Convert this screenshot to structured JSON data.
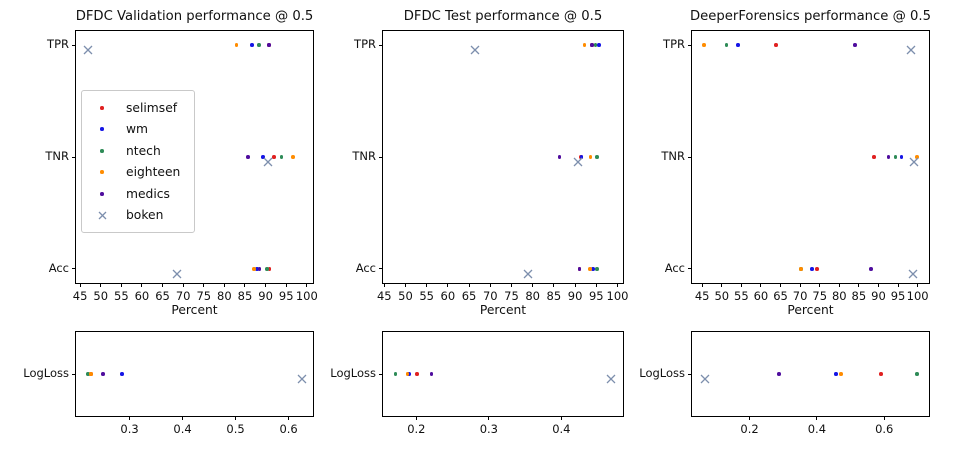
{
  "chart_data": [
    {
      "type": "scatter",
      "title": "DFDC Validation performance @ 0.5",
      "xlabel": "Percent",
      "categories": [
        "TPR",
        "TNR",
        "Acc"
      ],
      "xlim": [
        44.0,
        101.5
      ],
      "xticks": [
        45,
        50,
        55,
        60,
        65,
        70,
        75,
        80,
        85,
        90,
        95,
        100
      ],
      "grid": false,
      "legend": {
        "show": true,
        "left": 5,
        "top": 59
      },
      "series": [
        {
          "name": "selimsef",
          "marker": "dot",
          "color": "#e02020",
          "values": [
            90.8,
            92.0,
            90.9
          ]
        },
        {
          "name": "wm",
          "marker": "dot",
          "color": "#1515e6",
          "values": [
            86.7,
            89.3,
            87.9
          ]
        },
        {
          "name": "ntech",
          "marker": "dot",
          "color": "#2e8b57",
          "values": [
            88.4,
            93.9,
            90.3
          ]
        },
        {
          "name": "eighteen",
          "marker": "dot",
          "color": "#ff8c00",
          "values": [
            82.9,
            96.6,
            87.2
          ]
        },
        {
          "name": "medics",
          "marker": "dot",
          "color": "#4f0d9e",
          "values": [
            90.8,
            85.8,
            88.5
          ]
        },
        {
          "name": "boken",
          "marker": "x",
          "color": "#7d8fad",
          "values": [
            47.0,
            90.5,
            68.4
          ]
        }
      ]
    },
    {
      "type": "scatter",
      "title": "DFDC Test performance @ 0.5",
      "xlabel": "Percent",
      "categories": [
        "TPR",
        "TNR",
        "Acc"
      ],
      "xlim": [
        44.7,
        101.3
      ],
      "xticks": [
        45,
        50,
        55,
        60,
        65,
        70,
        75,
        80,
        85,
        90,
        95,
        100
      ],
      "grid": false,
      "legend": {
        "show": false
      },
      "series": [
        {
          "name": "selimsef",
          "marker": "dot",
          "color": "#e02020",
          "values": [
            94.0,
            91.4,
            91.0
          ]
        },
        {
          "name": "wm",
          "marker": "dot",
          "color": "#1515e6",
          "values": [
            95.7,
            91.5,
            94.2
          ]
        },
        {
          "name": "ntech",
          "marker": "dot",
          "color": "#2e8b57",
          "values": [
            94.8,
            95.2,
            95.1
          ]
        },
        {
          "name": "eighteen",
          "marker": "dot",
          "color": "#ff8c00",
          "values": [
            92.2,
            93.6,
            93.5
          ]
        },
        {
          "name": "medics",
          "marker": "dot",
          "color": "#4f0d9e",
          "values": [
            94.0,
            86.3,
            91.0
          ]
        },
        {
          "name": "boken",
          "marker": "x",
          "color": "#7d8fad",
          "values": [
            66.5,
            90.8,
            78.8
          ]
        }
      ]
    },
    {
      "type": "scatter",
      "title": "DeeperForensics performance @ 0.5",
      "xlabel": "Percent",
      "categories": [
        "TPR",
        "TNR",
        "Acc"
      ],
      "xlim": [
        42.4,
        102.9
      ],
      "xticks": [
        45,
        50,
        55,
        60,
        65,
        70,
        75,
        80,
        85,
        90,
        95,
        100
      ],
      "grid": false,
      "legend": {
        "show": false
      },
      "series": [
        {
          "name": "selimsef",
          "marker": "dot",
          "color": "#e02020",
          "values": [
            63.9,
            88.8,
            74.3
          ]
        },
        {
          "name": "wm",
          "marker": "dot",
          "color": "#1515e6",
          "values": [
            54.2,
            95.9,
            73.0
          ]
        },
        {
          "name": "ntech",
          "marker": "dot",
          "color": "#2e8b57",
          "values": [
            51.2,
            94.4,
            70.3
          ]
        },
        {
          "name": "eighteen",
          "marker": "dot",
          "color": "#ff8c00",
          "values": [
            45.5,
            99.8,
            70.3
          ]
        },
        {
          "name": "medics",
          "marker": "dot",
          "color": "#4f0d9e",
          "values": [
            84.0,
            92.6,
            88.1
          ]
        },
        {
          "name": "boken",
          "marker": "x",
          "color": "#7d8fad",
          "values": [
            98.2,
            99.0,
            98.7
          ]
        }
      ]
    },
    {
      "type": "scatter",
      "title": "",
      "xlabel": "",
      "categories": [
        "LogLoss"
      ],
      "xlim": [
        0.199,
        0.646
      ],
      "xticks": [
        0.3,
        0.4,
        0.5,
        0.6
      ],
      "grid": false,
      "legend": {
        "show": false
      },
      "series": [
        {
          "name": "selimsef",
          "marker": "dot",
          "color": "#e02020",
          "values": [
            0.227
          ]
        },
        {
          "name": "wm",
          "marker": "dot",
          "color": "#1515e6",
          "values": [
            0.286
          ]
        },
        {
          "name": "ntech",
          "marker": "dot",
          "color": "#2e8b57",
          "values": [
            0.222
          ]
        },
        {
          "name": "eighteen",
          "marker": "dot",
          "color": "#ff8c00",
          "values": [
            0.227
          ]
        },
        {
          "name": "medics",
          "marker": "dot",
          "color": "#4f0d9e",
          "values": [
            0.25
          ]
        },
        {
          "name": "boken",
          "marker": "x",
          "color": "#7d8fad",
          "values": [
            0.626
          ]
        }
      ]
    },
    {
      "type": "scatter",
      "title": "",
      "xlabel": "",
      "categories": [
        "LogLoss"
      ],
      "xlim": [
        0.154,
        0.485
      ],
      "xticks": [
        0.2,
        0.3,
        0.4
      ],
      "grid": false,
      "legend": {
        "show": false
      },
      "series": [
        {
          "name": "selimsef",
          "marker": "dot",
          "color": "#e02020",
          "values": [
            0.201
          ]
        },
        {
          "name": "wm",
          "marker": "dot",
          "color": "#1515e6",
          "values": [
            0.19
          ]
        },
        {
          "name": "ntech",
          "marker": "dot",
          "color": "#2e8b57",
          "values": [
            0.171
          ]
        },
        {
          "name": "eighteen",
          "marker": "dot",
          "color": "#ff8c00",
          "values": [
            0.188
          ]
        },
        {
          "name": "medics",
          "marker": "dot",
          "color": "#4f0d9e",
          "values": [
            0.221
          ]
        },
        {
          "name": "boken",
          "marker": "x",
          "color": "#7d8fad",
          "values": [
            0.468
          ]
        }
      ]
    },
    {
      "type": "scatter",
      "title": "",
      "xlabel": "",
      "categories": [
        "LogLoss"
      ],
      "xlim": [
        0.029,
        0.733
      ],
      "xticks": [
        0.2,
        0.4,
        0.6
      ],
      "grid": false,
      "legend": {
        "show": false
      },
      "series": [
        {
          "name": "selimsef",
          "marker": "dot",
          "color": "#e02020",
          "values": [
            0.59
          ]
        },
        {
          "name": "wm",
          "marker": "dot",
          "color": "#1515e6",
          "values": [
            0.456
          ]
        },
        {
          "name": "ntech",
          "marker": "dot",
          "color": "#2e8b57",
          "values": [
            0.698
          ]
        },
        {
          "name": "eighteen",
          "marker": "dot",
          "color": "#ff8c00",
          "values": [
            0.471
          ]
        },
        {
          "name": "medics",
          "marker": "dot",
          "color": "#4f0d9e",
          "values": [
            0.287
          ]
        },
        {
          "name": "boken",
          "marker": "x",
          "color": "#7d8fad",
          "values": [
            0.069
          ]
        }
      ]
    }
  ]
}
